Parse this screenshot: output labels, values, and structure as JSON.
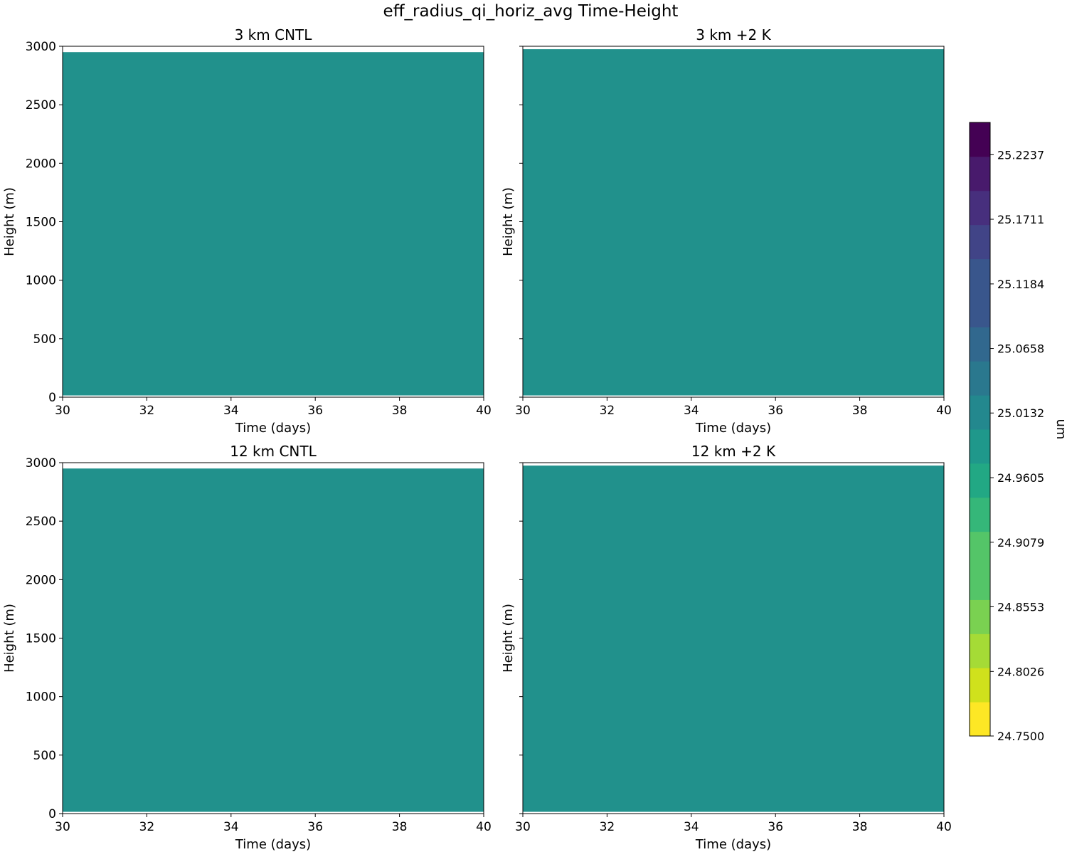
{
  "chart_data": {
    "title": "eff_radius_qi_horiz_avg Time-Height",
    "type": "heatmap",
    "panels": [
      {
        "title": "3 km CNTL",
        "xlabel": "Time (days)",
        "ylabel": "Height (m)",
        "xlim": [
          30,
          40
        ],
        "ylim": [
          0,
          3000
        ],
        "xticks": [
          "30",
          "32",
          "34",
          "36",
          "38",
          "40"
        ],
        "yticks": [
          "0",
          "500",
          "1000",
          "1500",
          "2000",
          "2500",
          "3000"
        ],
        "show_ytick_labels": true,
        "field_height_range": [
          15,
          2950
        ],
        "field_value": 24.99
      },
      {
        "title": "3 km +2 K",
        "xlabel": "Time (days)",
        "ylabel": "Height (m)",
        "xlim": [
          30,
          40
        ],
        "ylim": [
          0,
          3000
        ],
        "xticks": [
          "30",
          "32",
          "34",
          "36",
          "38",
          "40"
        ],
        "yticks": [
          "0",
          "500",
          "1000",
          "1500",
          "2000",
          "2500",
          "3000"
        ],
        "show_ytick_labels": false,
        "field_height_range": [
          15,
          2975
        ],
        "field_value": 24.99
      },
      {
        "title": "12 km CNTL",
        "xlabel": "Time (days)",
        "ylabel": "Height (m)",
        "xlim": [
          30,
          40
        ],
        "ylim": [
          0,
          3000
        ],
        "xticks": [
          "30",
          "32",
          "34",
          "36",
          "38",
          "40"
        ],
        "yticks": [
          "0",
          "500",
          "1000",
          "1500",
          "2000",
          "2500",
          "3000"
        ],
        "show_ytick_labels": true,
        "field_height_range": [
          15,
          2950
        ],
        "field_value": 24.99
      },
      {
        "title": "12 km +2 K",
        "xlabel": "Time (days)",
        "ylabel": "Height (m)",
        "xlim": [
          30,
          40
        ],
        "ylim": [
          0,
          3000
        ],
        "xticks": [
          "30",
          "32",
          "34",
          "36",
          "38",
          "40"
        ],
        "yticks": [
          "0",
          "500",
          "1000",
          "1500",
          "2000",
          "2500",
          "3000"
        ],
        "show_ytick_labels": false,
        "field_height_range": [
          15,
          2975
        ],
        "field_value": 24.99
      }
    ],
    "colorbar": {
      "label": "um",
      "min": 24.75,
      "max": 25.25,
      "levels": 19,
      "ticks": [
        "24.7500",
        "24.8026",
        "24.8553",
        "24.9079",
        "24.9605",
        "25.0132",
        "25.0658",
        "25.1184",
        "25.1711",
        "25.2237"
      ],
      "colors": [
        "#fde725",
        "#d0e11c",
        "#a5db36",
        "#7ad151",
        "#54c568",
        "#35b779",
        "#22a884",
        "#1f988b",
        "#23888e",
        "#2a788e",
        "#31688e",
        "#39568c",
        "#414487",
        "#472f7d",
        "#481a6c",
        "#440154"
      ]
    },
    "field_color": "#21918c"
  }
}
